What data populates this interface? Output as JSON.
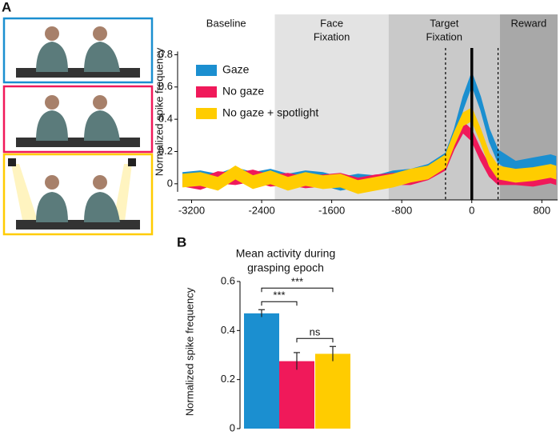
{
  "panel_labels": [
    "A",
    "B"
  ],
  "chart_data": [
    {
      "type": "band",
      "ylabel": "Normalized spike frequency",
      "xlim": [
        -3360,
        980
      ],
      "ylim": [
        -0.1,
        1.05
      ],
      "xticks": [
        -3200,
        -2400,
        -1600,
        -800,
        0,
        800
      ],
      "yticks": [
        0,
        0.2,
        0.4,
        0.6,
        0.8
      ],
      "epochs": [
        {
          "label": [
            "Baseline"
          ],
          "start": -3360,
          "end": -2250,
          "color": "#ffffff"
        },
        {
          "label": [
            "Face",
            "Fixation"
          ],
          "start": -2250,
          "end": -950,
          "color": "#e3e3e3"
        },
        {
          "label": [
            "Target",
            "Fixation"
          ],
          "start": -950,
          "end": 320,
          "color": "#c9c9c9"
        },
        {
          "label": [
            "Reward"
          ],
          "start": 320,
          "end": 980,
          "color": "#a8a8a8"
        }
      ],
      "dashed_lines": [
        -300,
        300
      ],
      "solid_line": 0,
      "x": [
        -3300,
        -3100,
        -2900,
        -2700,
        -2500,
        -2300,
        -2100,
        -1900,
        -1700,
        -1500,
        -1300,
        -1100,
        -900,
        -700,
        -500,
        -300,
        -200,
        -100,
        0,
        100,
        200,
        300,
        500,
        700,
        900,
        960
      ],
      "series": [
        {
          "name": "Gaze",
          "color": "#1b8fd0",
          "band": 0.04,
          "values": [
            0.03,
            0.04,
            0.02,
            0.06,
            0.03,
            0.05,
            0.02,
            0.04,
            0.03,
            0.0,
            0.02,
            0.01,
            0.04,
            0.05,
            0.08,
            0.15,
            0.3,
            0.5,
            0.65,
            0.5,
            0.3,
            0.17,
            0.1,
            0.12,
            0.14,
            0.13
          ]
        },
        {
          "name": "No gaze",
          "color": "#f0195a",
          "band": 0.035,
          "values": [
            0.02,
            0.0,
            0.04,
            0.03,
            0.05,
            0.02,
            0.03,
            0.01,
            0.02,
            0.03,
            0.0,
            0.02,
            0.03,
            0.03,
            0.06,
            0.12,
            0.25,
            0.35,
            0.3,
            0.18,
            0.08,
            0.03,
            0.03,
            0.02,
            0.04,
            0.03
          ]
        },
        {
          "name": "No gaze + spotlight",
          "color": "#ffcc00",
          "band": 0.04,
          "values": [
            0.02,
            0.03,
            0.0,
            0.07,
            0.01,
            0.04,
            0.0,
            0.03,
            0.01,
            0.02,
            -0.02,
            0.0,
            0.02,
            0.05,
            0.07,
            0.14,
            0.28,
            0.4,
            0.43,
            0.3,
            0.15,
            0.07,
            0.05,
            0.06,
            0.08,
            0.07
          ]
        }
      ]
    },
    {
      "type": "bar",
      "title": [
        "Mean activity during",
        "grasping epoch"
      ],
      "ylabel": "Normalized spike frequency",
      "ylim": [
        0,
        0.6
      ],
      "yticks": [
        0,
        0.2,
        0.4,
        0.6
      ],
      "values": [
        0.47,
        0.275,
        0.305
      ],
      "errors": [
        0.015,
        0.035,
        0.03
      ],
      "colors": [
        "#1b8fd0",
        "#f0195a",
        "#ffcc00"
      ],
      "annotations": [
        {
          "from": 0,
          "to": 1,
          "label": "***"
        },
        {
          "from": 0,
          "to": 2,
          "label": "***"
        },
        {
          "from": 1,
          "to": 2,
          "label": "ns"
        }
      ]
    }
  ]
}
